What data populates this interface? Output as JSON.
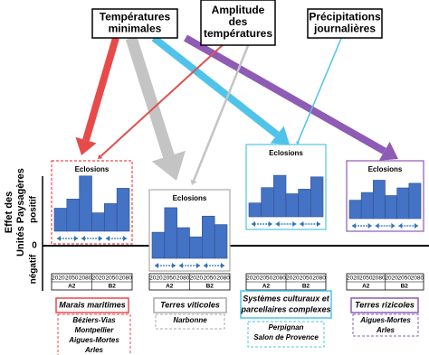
{
  "drivers": [
    {
      "label": [
        "Températures",
        "minimales"
      ]
    },
    {
      "label": [
        "Amplitude",
        "des",
        "températures"
      ]
    },
    {
      "label": [
        "Précipitations",
        "journalières"
      ]
    }
  ],
  "axis": {
    "label": [
      "Effet des",
      "Unités Paysagères"
    ],
    "positive": "positif",
    "zero": "0",
    "negative": "négatif"
  },
  "panels": [
    {
      "title": "Eclosions",
      "bars": [
        30,
        42,
        72,
        24,
        36,
        56
      ],
      "years": [
        "2020",
        "2050",
        "2080",
        "2020",
        "2050",
        "2080"
      ],
      "scenarios": [
        "A2",
        "B2"
      ],
      "landscape": [
        "Marais maritimes"
      ],
      "places": [
        "Béziers-Vias",
        "Montpellier",
        "Aigues-Mortes",
        "Arles"
      ]
    },
    {
      "title": "Eclosions",
      "bars": [
        34,
        66,
        40,
        28,
        55,
        44
      ],
      "years": [
        "2020",
        "2050",
        "2080",
        "2020",
        "2050",
        "2080"
      ],
      "scenarios": [
        "A2",
        "B2"
      ],
      "landscape": [
        "Terres viticoles"
      ],
      "places": [
        "Narbonne"
      ]
    },
    {
      "title": "Eclosions",
      "bars": [
        18,
        38,
        54,
        30,
        36,
        52
      ],
      "years": [
        "2020",
        "2050",
        "2080",
        "2020",
        "2050",
        "2080"
      ],
      "scenarios": [
        "A2",
        "B2"
      ],
      "landscape": [
        "Systèmes culturaux et",
        "parcellaires complexes"
      ],
      "places": [
        "Perpignan",
        "Salon de Provence"
      ]
    },
    {
      "title": "Eclosions",
      "bars": [
        24,
        34,
        50,
        30,
        40,
        46
      ],
      "years": [
        "2020",
        "2050",
        "2080",
        "2020",
        "2050",
        "2080"
      ],
      "scenarios": [
        "A2",
        "B2"
      ],
      "landscape": [
        "Terres rizicoles"
      ],
      "places": [
        "Aigues-Mortes",
        "Arles"
      ]
    }
  ]
}
